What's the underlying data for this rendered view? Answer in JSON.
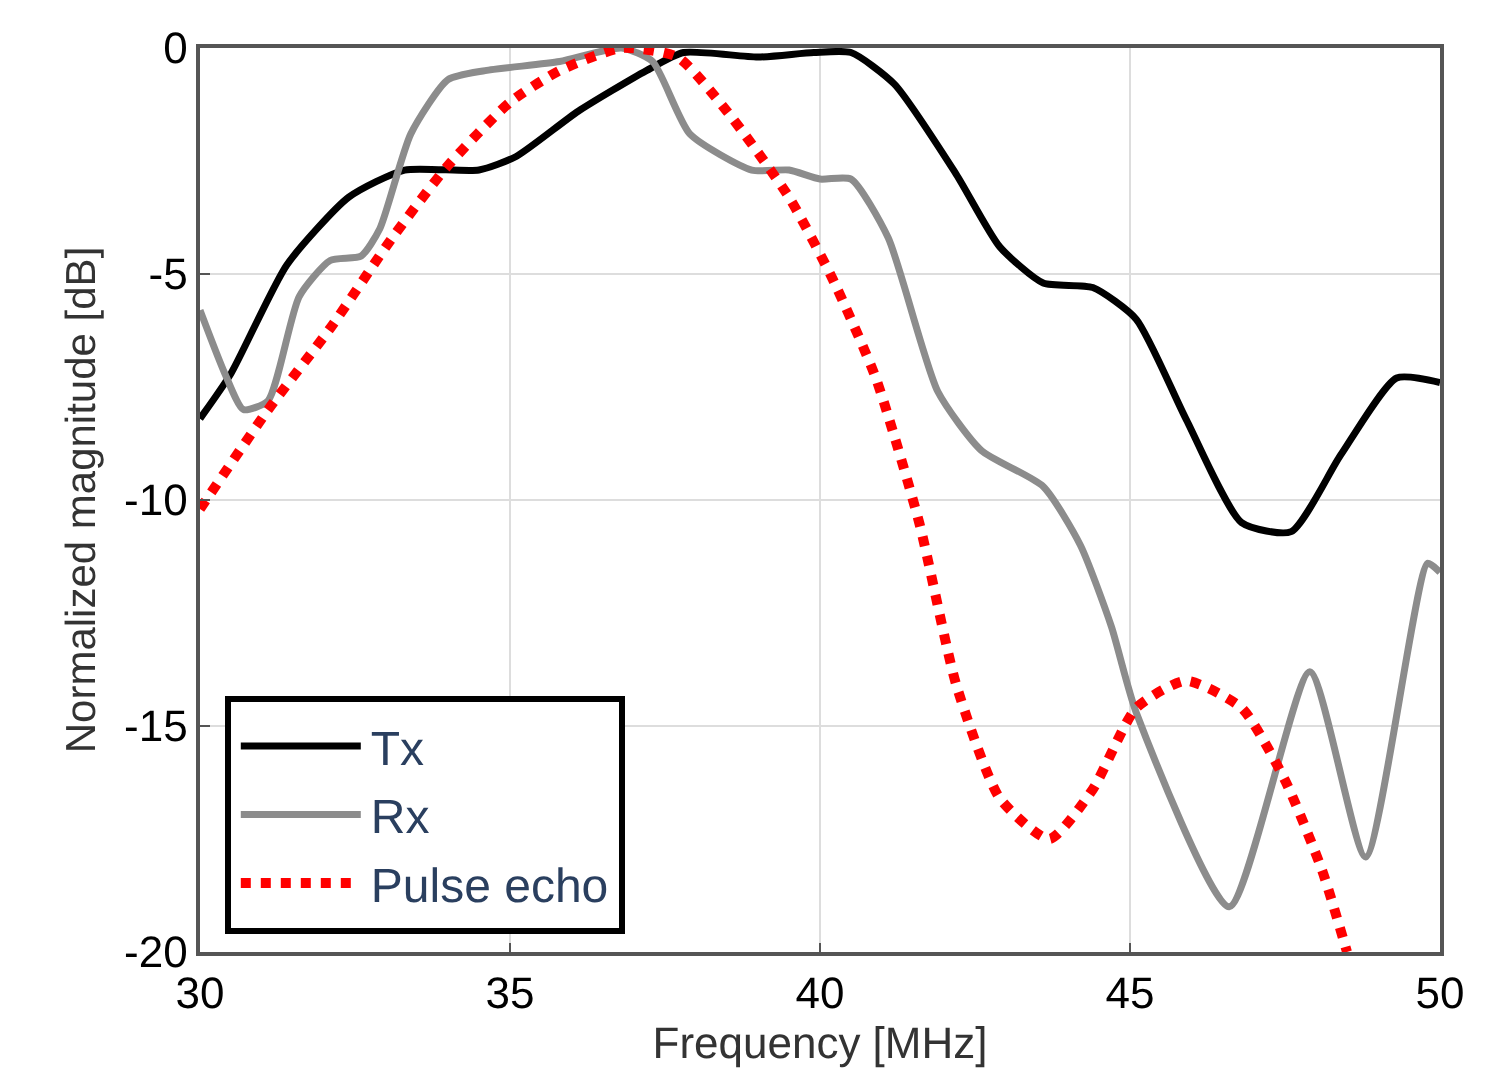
{
  "chart_data": {
    "type": "line",
    "xlabel": "Frequency [MHz]",
    "ylabel": "Normalized magnitude [dB]",
    "xlim": [
      30,
      50
    ],
    "xticks": [
      30,
      35,
      40,
      45,
      50
    ],
    "ylim": [
      -20,
      0
    ],
    "yticks": [
      -20,
      -15,
      -10,
      -5,
      0
    ],
    "grid": true,
    "legend": "bottom left",
    "marker": "none",
    "series": [
      {
        "name": "Tx",
        "color": "#000000",
        "line_style": "solid",
        "x": [
          30,
          30.5,
          31.4,
          32.4,
          33.3,
          34.5,
          35.1,
          36.1,
          37.2,
          37.8,
          39.0,
          39.9,
          40.5,
          41.2,
          42.2,
          42.9,
          43.6,
          44.4,
          45.1,
          45.9,
          46.8,
          47.6,
          48.4,
          49.3,
          50
        ],
        "values": [
          -8.2,
          -7.2,
          -4.8,
          -3.3,
          -2.7,
          -2.7,
          -2.4,
          -1.4,
          -0.5,
          -0.1,
          -0.2,
          -0.1,
          -0.1,
          -0.8,
          -2.8,
          -4.4,
          -5.2,
          -5.3,
          -6.0,
          -8.2,
          -10.5,
          -10.7,
          -9.0,
          -7.3,
          -7.4
        ]
      },
      {
        "name": "Rx",
        "color": "#8c8c8c",
        "line_style": "solid",
        "x": [
          30,
          30.4,
          30.7,
          31.1,
          31.6,
          32.1,
          32.6,
          32.9,
          33.4,
          34.0,
          34.6,
          35.8,
          36.8,
          37.3,
          37.9,
          38.9,
          39.5,
          40.0,
          40.5,
          41.1,
          41.9,
          42.6,
          43.6,
          44.2,
          44.7,
          45.1,
          46.6,
          47.9,
          48.8,
          49.8,
          50
        ],
        "values": [
          -5.8,
          -7.2,
          -8.0,
          -7.8,
          -5.5,
          -4.7,
          -4.6,
          -4.0,
          -1.9,
          -0.7,
          -0.5,
          -0.3,
          0,
          -0.3,
          -1.9,
          -2.7,
          -2.7,
          -2.9,
          -2.9,
          -4.2,
          -7.6,
          -8.9,
          -9.7,
          -11.0,
          -12.8,
          -14.7,
          -19.0,
          -13.8,
          -17.9,
          -11.4,
          -11.6
        ]
      },
      {
        "name": "Pulse echo",
        "color": "#ff0000",
        "line_style": "dotted",
        "x": [
          30,
          31.1,
          32.1,
          33.1,
          34.0,
          35.0,
          35.8,
          36.8,
          37.7,
          38.5,
          39.5,
          40.2,
          40.9,
          41.6,
          42.2,
          42.9,
          43.7,
          44.4,
          45.1,
          45.9,
          46.8,
          47.5,
          48.1,
          48.5
        ],
        "values": [
          -10.2,
          -8.0,
          -6.2,
          -4.2,
          -2.6,
          -1.2,
          -0.5,
          0,
          -0.2,
          -1.4,
          -3.3,
          -5.1,
          -7.3,
          -10.5,
          -14.1,
          -16.6,
          -17.5,
          -16.4,
          -14.6,
          -14.0,
          -14.6,
          -16.2,
          -18.2,
          -20.0
        ]
      }
    ]
  }
}
